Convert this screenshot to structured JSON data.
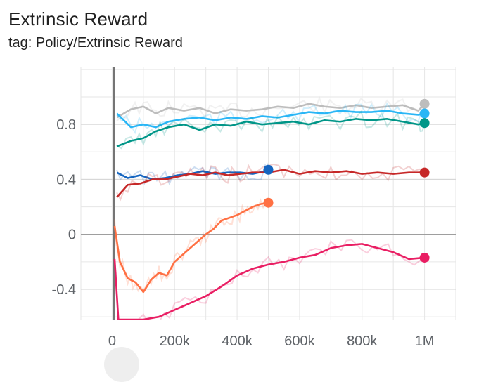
{
  "header": {
    "title": "Extrinsic Reward",
    "tag": "tag: Policy/Extrinsic Reward"
  },
  "colors": {
    "grid": "#e6e6e6",
    "zero_line": "#9e9e9e",
    "y_axis": "#757575",
    "tick_text": "#5f6368"
  },
  "chart_data": {
    "type": "line",
    "title": "Extrinsic Reward",
    "subtitle": "tag: Policy/Extrinsic Reward",
    "xlabel": "",
    "ylabel": "",
    "xlim": [
      -100000,
      1100000
    ],
    "ylim": [
      -0.62,
      1.22
    ],
    "x_ticks": [
      0,
      200000,
      400000,
      600000,
      800000,
      1000000
    ],
    "x_tick_labels": [
      "0",
      "200k",
      "400k",
      "600k",
      "800k",
      "1M"
    ],
    "y_ticks": [
      0.8,
      0.4,
      0,
      -0.4
    ],
    "y_tick_labels": [
      "0.8",
      "0.4",
      "0",
      "-0.4"
    ],
    "grid": true,
    "series": [
      {
        "color": "#bdbdbd",
        "x": [
          15000,
          60000,
          100000,
          140000,
          180000,
          230000,
          280000,
          330000,
          380000,
          430000,
          480000,
          530000,
          580000,
          630000,
          680000,
          730000,
          780000,
          830000,
          880000,
          930000,
          980000,
          1000000
        ],
        "y": [
          0.85,
          0.91,
          0.93,
          0.88,
          0.92,
          0.9,
          0.92,
          0.88,
          0.91,
          0.9,
          0.91,
          0.93,
          0.92,
          0.95,
          0.93,
          0.92,
          0.94,
          0.92,
          0.93,
          0.94,
          0.9,
          0.95
        ]
      },
      {
        "color": "#29b6f6",
        "x": [
          15000,
          60000,
          100000,
          140000,
          180000,
          230000,
          280000,
          330000,
          380000,
          430000,
          480000,
          530000,
          580000,
          630000,
          680000,
          730000,
          780000,
          830000,
          880000,
          930000,
          980000,
          1000000
        ],
        "y": [
          0.88,
          0.78,
          0.8,
          0.78,
          0.82,
          0.84,
          0.85,
          0.83,
          0.85,
          0.84,
          0.86,
          0.85,
          0.87,
          0.89,
          0.88,
          0.9,
          0.89,
          0.89,
          0.9,
          0.88,
          0.87,
          0.88
        ]
      },
      {
        "color": "#009688",
        "x": [
          15000,
          60000,
          100000,
          140000,
          180000,
          230000,
          280000,
          330000,
          380000,
          430000,
          480000,
          530000,
          580000,
          630000,
          680000,
          730000,
          780000,
          830000,
          880000,
          930000,
          980000,
          1000000
        ],
        "y": [
          0.64,
          0.68,
          0.7,
          0.75,
          0.78,
          0.8,
          0.76,
          0.8,
          0.79,
          0.82,
          0.8,
          0.81,
          0.82,
          0.8,
          0.83,
          0.82,
          0.84,
          0.83,
          0.84,
          0.82,
          0.8,
          0.81
        ]
      },
      {
        "color": "#1565c0",
        "x": [
          15000,
          50000,
          90000,
          130000,
          170000,
          210000,
          250000,
          290000,
          330000,
          370000,
          410000,
          450000,
          490000,
          500000
        ],
        "y": [
          0.45,
          0.41,
          0.43,
          0.4,
          0.41,
          0.43,
          0.44,
          0.46,
          0.44,
          0.45,
          0.45,
          0.44,
          0.46,
          0.47
        ]
      },
      {
        "color": "#c62828",
        "x": [
          15000,
          50000,
          90000,
          130000,
          170000,
          210000,
          250000,
          290000,
          330000,
          370000,
          410000,
          450000,
          500000,
          550000,
          600000,
          650000,
          700000,
          750000,
          800000,
          850000,
          900000,
          950000,
          1000000
        ],
        "y": [
          0.27,
          0.36,
          0.37,
          0.4,
          0.4,
          0.42,
          0.44,
          0.43,
          0.45,
          0.43,
          0.44,
          0.45,
          0.45,
          0.47,
          0.44,
          0.46,
          0.45,
          0.46,
          0.44,
          0.45,
          0.44,
          0.45,
          0.45
        ]
      },
      {
        "color": "#ff7043",
        "x": [
          8000,
          25000,
          50000,
          75000,
          100000,
          125000,
          150000,
          175000,
          200000,
          225000,
          250000,
          275000,
          300000,
          325000,
          350000,
          375000,
          400000,
          425000,
          450000,
          475000,
          500000
        ],
        "y": [
          0.06,
          -0.2,
          -0.32,
          -0.35,
          -0.42,
          -0.33,
          -0.28,
          -0.3,
          -0.2,
          -0.15,
          -0.1,
          -0.05,
          0.0,
          0.04,
          0.1,
          0.12,
          0.14,
          0.17,
          0.2,
          0.22,
          0.23
        ]
      },
      {
        "color": "#e91e63",
        "x": [
          8000,
          20000,
          100000,
          150000,
          200000,
          250000,
          300000,
          350000,
          400000,
          450000,
          500000,
          550000,
          600000,
          650000,
          700000,
          750000,
          800000,
          850000,
          900000,
          950000,
          1000000
        ],
        "y": [
          -0.18,
          -0.62,
          -0.62,
          -0.6,
          -0.55,
          -0.5,
          -0.45,
          -0.38,
          -0.3,
          -0.25,
          -0.22,
          -0.2,
          -0.17,
          -0.15,
          -0.1,
          -0.08,
          -0.07,
          -0.1,
          -0.13,
          -0.18,
          -0.17
        ]
      }
    ]
  }
}
